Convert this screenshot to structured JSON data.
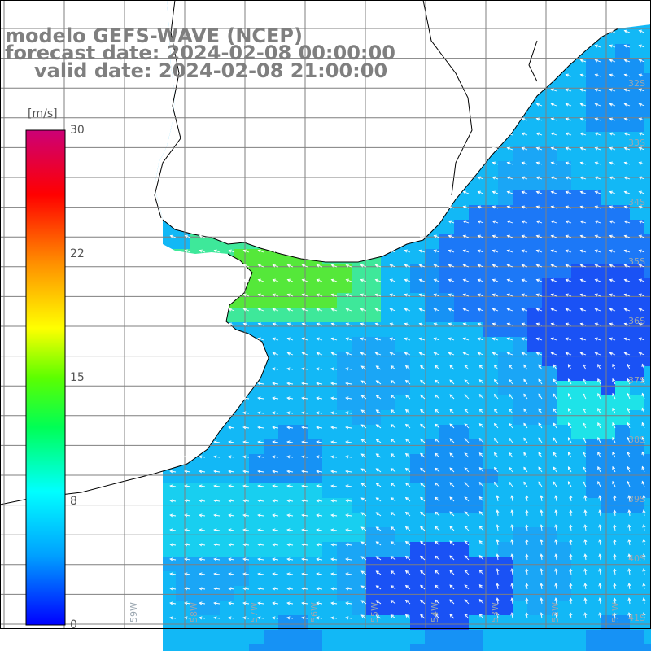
{
  "title": {
    "line1": "modelo GEFS-WAVE (NCEP)",
    "line2": "forecast date: 2024-02-08 00:00:00",
    "line3": "valid date: 2024-02-08 21:00:00"
  },
  "colorbar": {
    "unit": "[m/s]",
    "ticks": [
      "30",
      "22",
      "15",
      "8",
      "0"
    ],
    "range": [
      0,
      30
    ]
  },
  "axes": {
    "lat_labels": [
      "32S",
      "33S",
      "34S",
      "35S",
      "36S",
      "37S",
      "38S",
      "39S",
      "40S",
      "41S"
    ],
    "lon_labels": [
      "59W",
      "58W",
      "57W",
      "56W",
      "55W",
      "54W",
      "53W",
      "52W",
      "51W"
    ]
  },
  "colors": {
    "ocean_low": "#1f5bff",
    "ocean_mid": "#12b8f6",
    "ocean_high": "#16d9ec",
    "plata_green": "#4ee63c",
    "land": "#ffffff",
    "grid": "#7f7f7f",
    "coast": "#000000",
    "arrow": "#ffffff",
    "title_text": "#7f7f7f"
  }
}
